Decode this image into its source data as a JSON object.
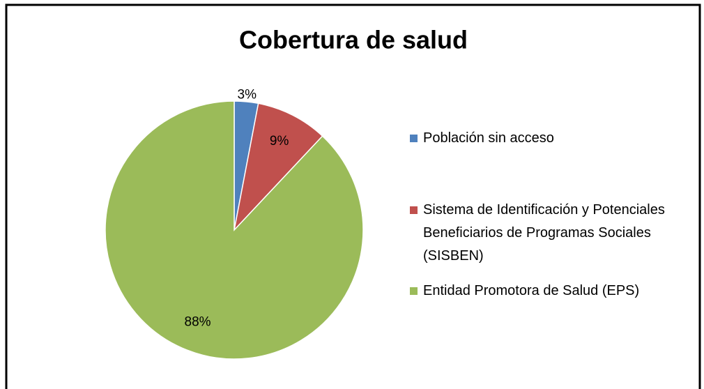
{
  "chart_data": {
    "type": "pie",
    "title": "Cobertura de salud",
    "categories": [
      "Población sin acceso",
      "Sistema de Identificación y Potenciales Beneficiarios de Programas Sociales (SISBEN)",
      "Entidad Promotora de Salud (EPS)"
    ],
    "values": [
      3,
      9,
      88
    ],
    "value_labels": [
      "3%",
      "9%",
      "88%"
    ],
    "colors": [
      "#4f81bd",
      "#c0504d",
      "#9bbb59"
    ],
    "legend": "right"
  }
}
